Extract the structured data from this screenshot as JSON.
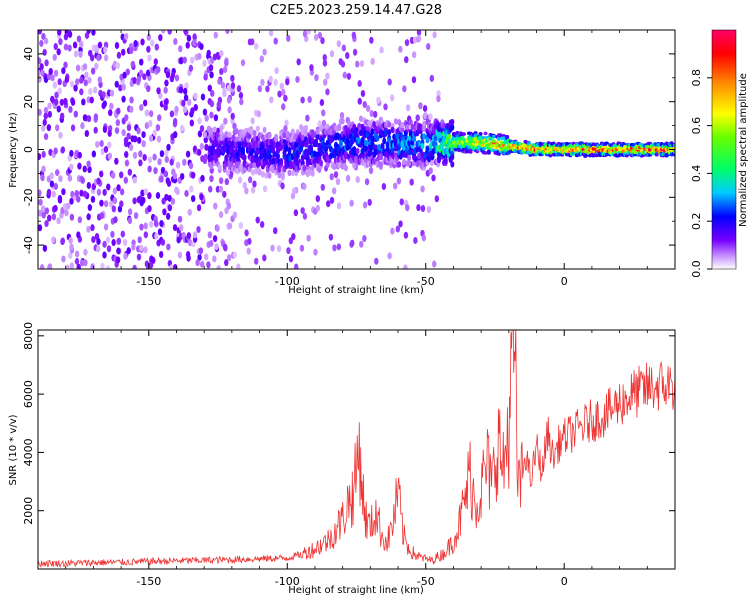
{
  "title": "C2E5.2023.259.14.47.G28",
  "chart_data": [
    {
      "type": "heatmap",
      "xlabel": "Height of straight line (km)",
      "ylabel": "Frequency (Hz)",
      "xlim": [
        -190,
        40
      ],
      "ylim": [
        -50,
        50
      ],
      "xticks": [
        -150,
        -100,
        -50,
        0
      ],
      "yticks": [
        -40,
        -20,
        0,
        20,
        40
      ],
      "colorbar": {
        "label": "Normalized spectral amplitude",
        "range": [
          0,
          1
        ],
        "ticks": [
          0.0,
          0.2,
          0.4,
          0.6,
          0.8
        ],
        "colormap": [
          "#ffffff",
          "#cc99ff",
          "#6600ff",
          "#0000ff",
          "#00ccff",
          "#00ff66",
          "#ccff00",
          "#ff9900",
          "#ff0000",
          "#ff0066"
        ]
      },
      "ridge": [
        {
          "x": -125,
          "freq": 0,
          "amp": 0.2
        },
        {
          "x": -100,
          "freq": -2,
          "amp": 0.25
        },
        {
          "x": -75,
          "freq": 3,
          "amp": 0.3
        },
        {
          "x": -50,
          "freq": 2,
          "amp": 0.35
        },
        {
          "x": -40,
          "freq": 3,
          "amp": 0.6
        },
        {
          "x": -30,
          "freq": 3,
          "amp": 0.8
        },
        {
          "x": -10,
          "freq": 0,
          "amp": 0.9
        },
        {
          "x": 0,
          "freq": 0,
          "amp": 0.95
        },
        {
          "x": 40,
          "freq": 0,
          "amp": 0.95
        }
      ]
    },
    {
      "type": "line",
      "xlabel": "Height of straight line (km)",
      "ylabel": "SNR (10 * v/v)",
      "xlim": [
        -190,
        40
      ],
      "ylim": [
        0,
        8200
      ],
      "xticks": [
        -150,
        -100,
        -50,
        0
      ],
      "yticks": [
        2000,
        4000,
        6000,
        8000
      ],
      "color": "#ee3333",
      "series": [
        {
          "x": [
            -190,
            -180,
            -170,
            -160,
            -150,
            -140,
            -130,
            -120,
            -110,
            -100,
            -95,
            -90,
            -85,
            -80,
            -78,
            -76,
            -74,
            -72,
            -70,
            -68,
            -66,
            -64,
            -62,
            -60,
            -58,
            -56,
            -54,
            -52,
            -50,
            -48,
            -46,
            -44,
            -42,
            -40,
            -38,
            -36,
            -34,
            -32,
            -30,
            -28,
            -26,
            -24,
            -22,
            -20,
            -19,
            -18,
            -17,
            -16,
            -14,
            -12,
            -10,
            -8,
            -6,
            -4,
            -2,
            0,
            5,
            10,
            15,
            20,
            25,
            30,
            35,
            40
          ],
          "y": [
            200,
            190,
            220,
            230,
            260,
            280,
            300,
            320,
            350,
            380,
            500,
            700,
            1000,
            1700,
            2300,
            2600,
            4200,
            1800,
            1400,
            2000,
            1200,
            900,
            1500,
            2600,
            1100,
            700,
            500,
            400,
            350,
            300,
            400,
            500,
            700,
            1000,
            1500,
            2300,
            3300,
            2200,
            2700,
            3600,
            2800,
            4600,
            3300,
            5000,
            6500,
            8200,
            3600,
            2600,
            4000,
            3000,
            4200,
            3300,
            4700,
            3800,
            4300,
            4500,
            4800,
            5100,
            5300,
            5700,
            6000,
            6200,
            6300,
            6300
          ]
        }
      ]
    }
  ]
}
